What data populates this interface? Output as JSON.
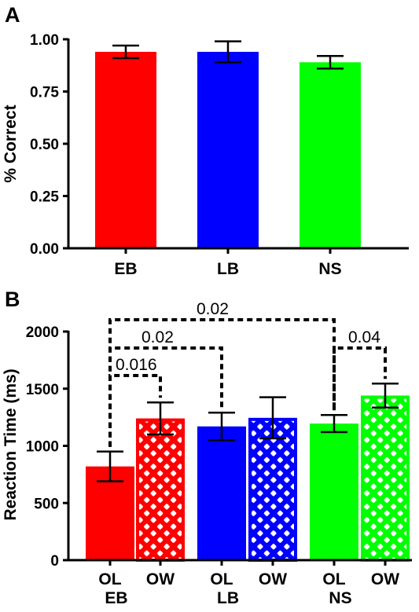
{
  "chart_data": [
    {
      "panel": "A",
      "type": "bar",
      "ylabel": "% Correct",
      "xlabel": "",
      "ylim": [
        0,
        1.0
      ],
      "yticks": [
        "0.00",
        "0.25",
        "0.50",
        "0.75",
        "1.00"
      ],
      "categories": [
        "EB",
        "LB",
        "NS"
      ],
      "values": [
        0.94,
        0.94,
        0.89
      ],
      "errors": [
        0.03,
        0.05,
        0.03
      ],
      "colors": [
        "#ff0000",
        "#0000ff",
        "#00ff00"
      ]
    },
    {
      "panel": "B",
      "type": "bar",
      "ylabel": "Reaction Time (ms)",
      "xlabel": "",
      "ylim": [
        0,
        2000
      ],
      "yticks": [
        "0",
        "500",
        "1000",
        "1500",
        "2000"
      ],
      "groups": [
        "EB",
        "LB",
        "NS"
      ],
      "subcategories": [
        "OL",
        "OW"
      ],
      "colors": [
        "#ff0000",
        "#0000ff",
        "#00ff00"
      ],
      "series": [
        {
          "name": "OL",
          "values": [
            820,
            1170,
            1195
          ],
          "errors": [
            130,
            120,
            75
          ]
        },
        {
          "name": "OW",
          "values": [
            1240,
            1245,
            1440
          ],
          "errors": [
            140,
            180,
            105
          ]
        }
      ],
      "significance": [
        {
          "from": "EB-OL",
          "to": "EB-OW",
          "label": "0.016"
        },
        {
          "from": "EB-OL",
          "to": "LB-OL",
          "label": "0.02"
        },
        {
          "from": "EB-OL",
          "to": "NS-OL",
          "label": "0.02"
        },
        {
          "from": "NS-OL",
          "to": "NS-OW",
          "label": "0.04"
        }
      ]
    }
  ]
}
